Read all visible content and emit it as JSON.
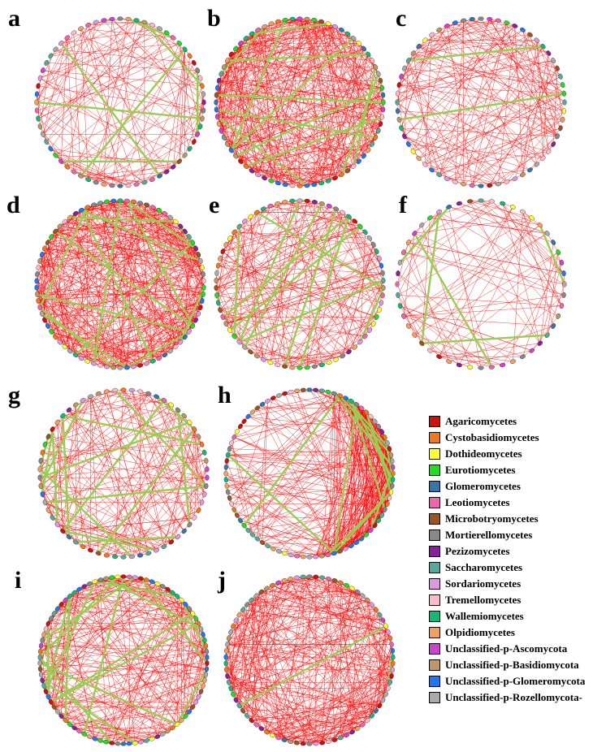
{
  "panels": [
    {
      "letter": "a",
      "density": 150,
      "green": 9,
      "nodes": 64,
      "seed": 11,
      "skew": 0
    },
    {
      "letter": "b",
      "density": 420,
      "green": 14,
      "nodes": 72,
      "seed": 23,
      "skew": 0
    },
    {
      "letter": "c",
      "density": 190,
      "green": 2,
      "nodes": 60,
      "seed": 37,
      "skew": 0
    },
    {
      "letter": "d",
      "density": 460,
      "green": 18,
      "nodes": 78,
      "seed": 41,
      "skew": 0
    },
    {
      "letter": "e",
      "density": 220,
      "green": 12,
      "nodes": 70,
      "seed": 53,
      "skew": 0
    },
    {
      "letter": "f",
      "density": 110,
      "green": 6,
      "nodes": 48,
      "seed": 67,
      "skew": 0
    },
    {
      "letter": "g",
      "density": 190,
      "green": 16,
      "nodes": 62,
      "seed": 71,
      "skew": 0
    },
    {
      "letter": "h",
      "density": 430,
      "green": 18,
      "nodes": 84,
      "seed": 83,
      "skew": 1
    },
    {
      "letter": "i",
      "density": 260,
      "green": 20,
      "nodes": 90,
      "seed": 97,
      "skew": 0
    },
    {
      "letter": "j",
      "density": 380,
      "green": 2,
      "nodes": 82,
      "seed": 101,
      "skew": 0
    }
  ],
  "edge_colors": {
    "negative": "#ff0000",
    "positive": "#99cc55"
  },
  "legend": [
    {
      "label": "Agaricomycetes",
      "color": "#cc1111"
    },
    {
      "label": "Cystobasidiomycetes",
      "color": "#f07820"
    },
    {
      "label": "Dothideomycetes",
      "color": "#ffff33"
    },
    {
      "label": "Eurotiomycetes",
      "color": "#22dd22"
    },
    {
      "label": "Glomeromycetes",
      "color": "#3377aa"
    },
    {
      "label": "Leotiomycetes",
      "color": "#ee66aa"
    },
    {
      "label": "Microbotryomycetes",
      "color": "#995522"
    },
    {
      "label": "Mortierellomycetes",
      "color": "#888888"
    },
    {
      "label": "Pezizomycetes",
      "color": "#882299"
    },
    {
      "label": "Saccharomycetes",
      "color": "#55aa99"
    },
    {
      "label": "Sordariomycetes",
      "color": "#dd99dd"
    },
    {
      "label": "Tremellomycetes",
      "color": "#ffbbcc"
    },
    {
      "label": "Wallemiomycetes",
      "color": "#11bb77"
    },
    {
      "label": "Olpidiomycetes",
      "color": "#f0a060"
    },
    {
      "label": "Unclassified-p-Ascomycota",
      "color": "#cc44cc"
    },
    {
      "label": "Unclassified-p-Basidiomycota",
      "color": "#bb9966"
    },
    {
      "label": "Unclassified-p-Glomeromycota",
      "color": "#2277ee"
    },
    {
      "label": "Unclassified-p-Rozellomycota-",
      "color": "#aaaaaa"
    }
  ]
}
